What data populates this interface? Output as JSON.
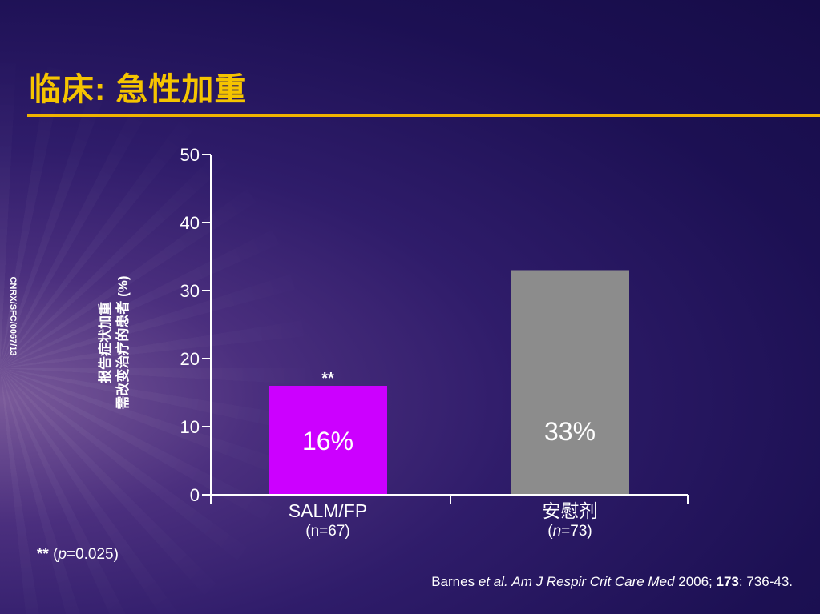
{
  "slide": {
    "title": "临床: 急性加重",
    "side_code": "CNRX/SFC/0067/13",
    "footnote": {
      "marker": "**",
      "open": "(",
      "p_symbol": "p",
      "value": "=0.025)"
    },
    "citation": {
      "author": "Barnes ",
      "etal": "et al.",
      "sep1": " ",
      "journal": "Am J Respir Crit Care Med",
      "year": " 2006; ",
      "volume": "173",
      "pages": ": 736-43."
    }
  },
  "chart_data": {
    "type": "bar",
    "title": "",
    "ylabel_lines": [
      "报告症状加重",
      "需改变治疗的患者 (%)"
    ],
    "xlabel": "",
    "ylim": [
      0,
      50
    ],
    "yticks": [
      0,
      10,
      20,
      30,
      40,
      50
    ],
    "categories": [
      "SALM/FP",
      "安慰剂"
    ],
    "values": [
      16,
      33
    ],
    "data_labels": [
      "16%",
      "33%"
    ],
    "annotations": [
      "**",
      ""
    ],
    "n_labels": [
      {
        "open": "(",
        "n": "n",
        "rest": "=67)",
        "italic": false
      },
      {
        "open": "(",
        "n": "n",
        "rest": "=73)",
        "italic": true
      }
    ],
    "colors": [
      "#cc00ff",
      "#8c8c8c"
    ],
    "grid": false,
    "legend": "none"
  }
}
